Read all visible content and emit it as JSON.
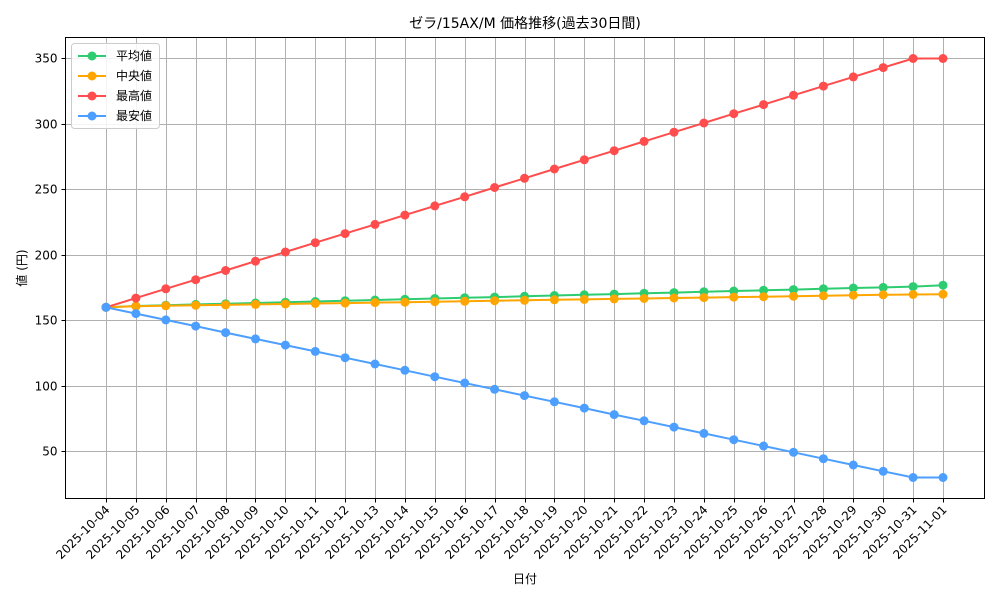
{
  "chart_data": {
    "type": "line",
    "title": "ゼラ/15AX/M 価格推移(過去30日間)",
    "xlabel": "日付",
    "ylabel": "値 (円)",
    "ylim": [
      14,
      366
    ],
    "yticks": [
      50,
      100,
      150,
      200,
      250,
      300,
      350
    ],
    "grid": true,
    "legend_position": "upper left",
    "categories": [
      "2025-10-04",
      "2025-10-05",
      "2025-10-06",
      "2025-10-07",
      "2025-10-08",
      "2025-10-09",
      "2025-10-10",
      "2025-10-11",
      "2025-10-12",
      "2025-10-13",
      "2025-10-14",
      "2025-10-15",
      "2025-10-16",
      "2025-10-17",
      "2025-10-18",
      "2025-10-19",
      "2025-10-20",
      "2025-10-21",
      "2025-10-22",
      "2025-10-23",
      "2025-10-24",
      "2025-10-25",
      "2025-10-26",
      "2025-10-27",
      "2025-10-28",
      "2025-10-29",
      "2025-10-30",
      "2025-10-31",
      "2025-11-01"
    ],
    "series": [
      {
        "name": "平均値",
        "color": "#2ecc71",
        "values": [
          160,
          161.0,
          161.6,
          162.2,
          162.7,
          163.3,
          163.9,
          164.4,
          165.0,
          165.6,
          166.1,
          166.7,
          167.3,
          167.8,
          168.4,
          169.0,
          169.5,
          170.1,
          170.7,
          171.2,
          171.8,
          172.4,
          173.0,
          173.5,
          174.1,
          174.7,
          175.2,
          175.8,
          176.9
        ]
      },
      {
        "name": "中央値",
        "color": "#ffa500",
        "values": [
          160,
          160.8,
          161.1,
          161.5,
          161.8,
          162.2,
          162.5,
          162.9,
          163.2,
          163.6,
          163.9,
          164.3,
          164.6,
          165.0,
          165.3,
          165.7,
          166.0,
          166.4,
          166.7,
          167.1,
          167.4,
          167.8,
          168.1,
          168.5,
          168.8,
          169.2,
          169.5,
          169.8,
          170.0
        ]
      },
      {
        "name": "最高値",
        "color": "#ff4d4d",
        "values": [
          160,
          167.0,
          174.1,
          181.1,
          188.1,
          195.2,
          202.2,
          209.3,
          216.3,
          223.3,
          230.4,
          237.4,
          244.4,
          251.5,
          258.5,
          265.6,
          272.6,
          279.6,
          286.7,
          293.7,
          300.7,
          307.8,
          314.8,
          321.9,
          328.9,
          335.9,
          343.0,
          350.0,
          350.0
        ]
      },
      {
        "name": "最安値",
        "color": "#4d9fff",
        "values": [
          160,
          155.2,
          150.4,
          145.6,
          140.7,
          135.9,
          131.1,
          126.3,
          121.5,
          116.7,
          111.9,
          107.0,
          102.2,
          97.4,
          92.6,
          87.8,
          83.0,
          78.1,
          73.3,
          68.5,
          63.7,
          58.9,
          54.1,
          49.3,
          44.4,
          39.6,
          34.8,
          30.0,
          30.0
        ]
      }
    ]
  }
}
